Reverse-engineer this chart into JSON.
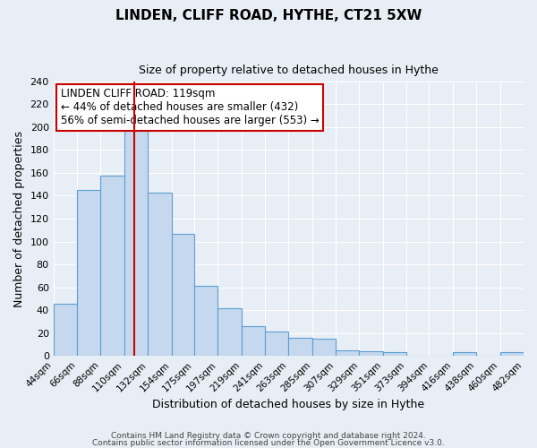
{
  "title": "LINDEN, CLIFF ROAD, HYTHE, CT21 5XW",
  "subtitle": "Size of property relative to detached houses in Hythe",
  "xlabel": "Distribution of detached houses by size in Hythe",
  "ylabel": "Number of detached properties",
  "bar_color": "#c5d8ed",
  "bar_edge_color": "#5a9fd4",
  "bg_color": "#e8eef5",
  "grid_color": "#ffffff",
  "vline_x": 119,
  "vline_color": "#cc0000",
  "annotation_title": "LINDEN CLIFF ROAD: 119sqm",
  "annotation_line1": "← 44% of detached houses are smaller (432)",
  "annotation_line2": "56% of semi-detached houses are larger (553) →",
  "annotation_box_color": "#ffffff",
  "annotation_box_edge": "#cc0000",
  "bin_edges": [
    44,
    66,
    88,
    110,
    132,
    154,
    175,
    197,
    219,
    241,
    263,
    285,
    307,
    329,
    351,
    373,
    394,
    416,
    438,
    460,
    482
  ],
  "bin_heights": [
    46,
    145,
    158,
    200,
    143,
    107,
    61,
    42,
    26,
    21,
    16,
    15,
    5,
    4,
    3,
    0,
    0,
    3,
    0,
    3
  ],
  "ylim": [
    0,
    240
  ],
  "yticks": [
    0,
    20,
    40,
    60,
    80,
    100,
    120,
    140,
    160,
    180,
    200,
    220,
    240
  ],
  "footer1": "Contains HM Land Registry data © Crown copyright and database right 2024.",
  "footer2": "Contains public sector information licensed under the Open Government Licence v3.0."
}
